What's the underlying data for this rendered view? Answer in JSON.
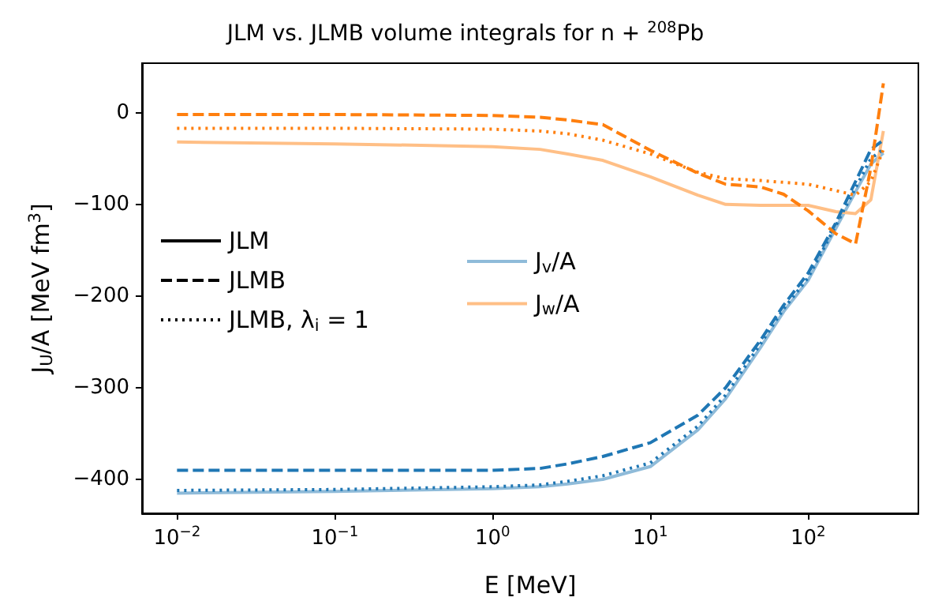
{
  "chart_data": {
    "type": "line",
    "title": "JLM vs. JLMB volume integrals for n + $^{208}$Pb",
    "xlabel": "E [MeV]",
    "ylabel": "J$_{U}$/A [MeV fm$^{3}$]",
    "log": "x",
    "grid": false,
    "legend": "center left",
    "marker": "none",
    "xlim": [
      0.006,
      500
    ],
    "ylim": [
      -437,
      54
    ],
    "xticks": [
      {
        "value": 0.01,
        "label": "10$^{−2}$"
      },
      {
        "value": 0.1,
        "label": "10$^{−1}$"
      },
      {
        "value": 1,
        "label": "10$^{0}$"
      },
      {
        "value": 10,
        "label": "10$^{1}$"
      },
      {
        "value": 100,
        "label": "10$^{2}$"
      }
    ],
    "yticks": [
      {
        "value": -400,
        "label": "−400"
      },
      {
        "value": -300,
        "label": "−300"
      },
      {
        "value": -200,
        "label": "−200"
      },
      {
        "value": -100,
        "label": "−100"
      },
      0
    ],
    "x": [
      0.01,
      0.1,
      1,
      2,
      3,
      5,
      10,
      20,
      30,
      50,
      70,
      100,
      150,
      200,
      250,
      300
    ],
    "series": [
      {
        "name": "JLM",
        "color": "#000000",
        "line_style": "solid",
        "values": [
          null,
          null,
          null,
          null,
          null,
          null,
          null,
          null,
          null,
          null,
          null,
          null,
          null,
          null,
          null,
          null
        ]
      },
      {
        "name": "JLMB",
        "color": "#000000",
        "line_style": "dashed",
        "values": [
          null,
          null,
          null,
          null,
          null,
          null,
          null,
          null,
          null,
          null,
          null,
          null,
          null,
          null,
          null,
          null
        ]
      },
      {
        "name": "JLMB, λ$_{i}$ = 1",
        "color": "#000000",
        "line_style": "dotted",
        "values": [
          null,
          null,
          null,
          null,
          null,
          null,
          null,
          null,
          null,
          null,
          null,
          null,
          null,
          null,
          null,
          null
        ]
      },
      {
        "name": "J$_{v}$/A",
        "color": "#8fbbd9",
        "line_style": "solid",
        "values": [
          -415,
          -413,
          -410,
          -408,
          -405,
          -400,
          -386,
          -346,
          -312,
          -256,
          -217,
          -183,
          -126,
          -86,
          -56,
          -44
        ]
      },
      {
        "name": "J$_{w}$/A",
        "color": "#ffbf86",
        "line_style": "solid",
        "values": [
          -32,
          -34,
          -37,
          -40,
          -45,
          -52,
          -70,
          -90,
          -100,
          -101,
          -101,
          -101,
          -108,
          -110,
          -95,
          -20
        ]
      },
      {
        "color": "#1f77b4",
        "line_style": "dashed",
        "values": [
          -390,
          -390,
          -390,
          -388,
          -383,
          -375,
          -360,
          -330,
          -300,
          -248,
          -210,
          -175,
          -120,
          -75,
          -40,
          -30
        ]
      },
      {
        "color": "#1f77b4",
        "line_style": "dotted",
        "values": [
          -412,
          -411,
          -408,
          -406,
          -402,
          -396,
          -382,
          -342,
          -308,
          -252,
          -214,
          -180,
          -123,
          -82,
          -50,
          -40
        ]
      },
      {
        "color": "#ff7f0e",
        "line_style": "dashed",
        "values": [
          -2,
          -2,
          -3,
          -5,
          -8,
          -13,
          -41,
          -66,
          -78,
          -81,
          -89,
          -107,
          -132,
          -143,
          -60,
          32
        ]
      },
      {
        "color": "#ff7f0e",
        "line_style": "dotted",
        "values": [
          -17,
          -17,
          -18,
          -20,
          -23,
          -30,
          -45,
          -65,
          -72,
          -74,
          -76,
          -78,
          -85,
          -90,
          -75,
          -40
        ]
      }
    ]
  }
}
